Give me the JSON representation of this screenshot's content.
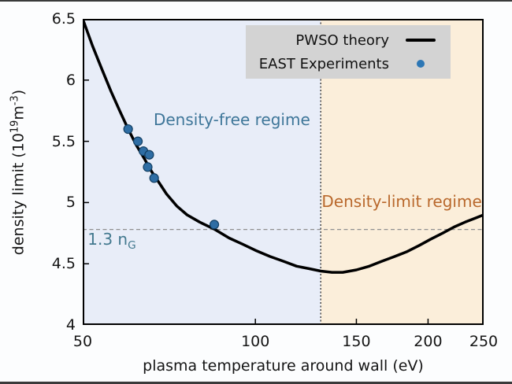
{
  "figure": {
    "bg_color": "#fcfdfe",
    "frame_color": "#3a3a3a"
  },
  "legend": {
    "bg": "#d3d3d3",
    "items": [
      {
        "label": "PWSO theory",
        "symbol": "line",
        "color": "#000000"
      },
      {
        "label": "EAST Experiments",
        "symbol": "dot",
        "color": "#2d77b5"
      }
    ]
  },
  "chart_data": {
    "type": "line",
    "title": "",
    "xlabel": "plasma temperature around wall (eV)",
    "ylabel_parts": {
      "prefix": "density limit (10",
      "sup1": "19",
      "mid": "m",
      "sup2": "-3",
      "suffix": ")"
    },
    "x_scale": "log",
    "xlim": [
      50,
      250
    ],
    "ylim": [
      4,
      6.5
    ],
    "x_ticks": [
      50,
      100,
      150,
      200,
      250
    ],
    "y_ticks": [
      6.5,
      6,
      5.5,
      5,
      4.5,
      4
    ],
    "grid": false,
    "legend_position": "upper right",
    "series": [
      {
        "name": "PWSO theory",
        "type": "line",
        "color": "#000000",
        "points": [
          [
            50,
            6.5
          ],
          [
            52,
            6.28
          ],
          [
            54,
            6.09
          ],
          [
            56,
            5.91
          ],
          [
            58,
            5.75
          ],
          [
            60,
            5.6
          ],
          [
            62,
            5.47
          ],
          [
            64,
            5.36
          ],
          [
            66,
            5.25
          ],
          [
            68,
            5.16
          ],
          [
            70,
            5.07
          ],
          [
            73,
            4.97
          ],
          [
            76,
            4.9
          ],
          [
            80,
            4.84
          ],
          [
            85,
            4.78
          ],
          [
            90,
            4.71
          ],
          [
            95,
            4.66
          ],
          [
            100,
            4.61
          ],
          [
            106,
            4.56
          ],
          [
            112,
            4.52
          ],
          [
            118,
            4.48
          ],
          [
            124,
            4.46
          ],
          [
            130,
            4.44
          ],
          [
            136,
            4.43
          ],
          [
            142,
            4.43
          ],
          [
            150,
            4.45
          ],
          [
            158,
            4.48
          ],
          [
            166,
            4.52
          ],
          [
            175,
            4.56
          ],
          [
            184,
            4.6
          ],
          [
            193,
            4.65
          ],
          [
            202,
            4.7
          ],
          [
            212,
            4.75
          ],
          [
            222,
            4.8
          ],
          [
            232,
            4.84
          ],
          [
            241,
            4.87
          ],
          [
            250,
            4.9
          ]
        ]
      },
      {
        "name": "EAST Experiments",
        "type": "scatter",
        "color": "#2e6da4",
        "edge_color": "#123f63",
        "points": [
          [
            60,
            5.6
          ],
          [
            62.4,
            5.5
          ],
          [
            63.8,
            5.42
          ],
          [
            65.3,
            5.39
          ],
          [
            64.9,
            5.29
          ],
          [
            66.6,
            5.2
          ],
          [
            84.8,
            4.82
          ]
        ]
      }
    ],
    "regions": [
      {
        "label": "Density-free regime",
        "x_range": [
          50,
          130
        ],
        "fill": "#e8edf8",
        "label_color": "#3e7699",
        "label_anchor": [
          91,
          5.68
        ]
      },
      {
        "label": "Density-limit regime",
        "x_range": [
          130,
          250
        ],
        "fill": "#fbeeda",
        "label_color": "#b9682c",
        "label_anchor": [
          180,
          5.01
        ]
      }
    ],
    "vline": {
      "x": 130,
      "color": "#3a3a3a",
      "dash": "2 2.5"
    },
    "hline": {
      "y": 4.78,
      "color": "#909090",
      "dash": "5 3.5",
      "label_parts": {
        "text": "1.3 n",
        "sub": "G"
      },
      "label_color": "#43798f",
      "label_anchor": [
        51,
        4.69
      ]
    }
  }
}
